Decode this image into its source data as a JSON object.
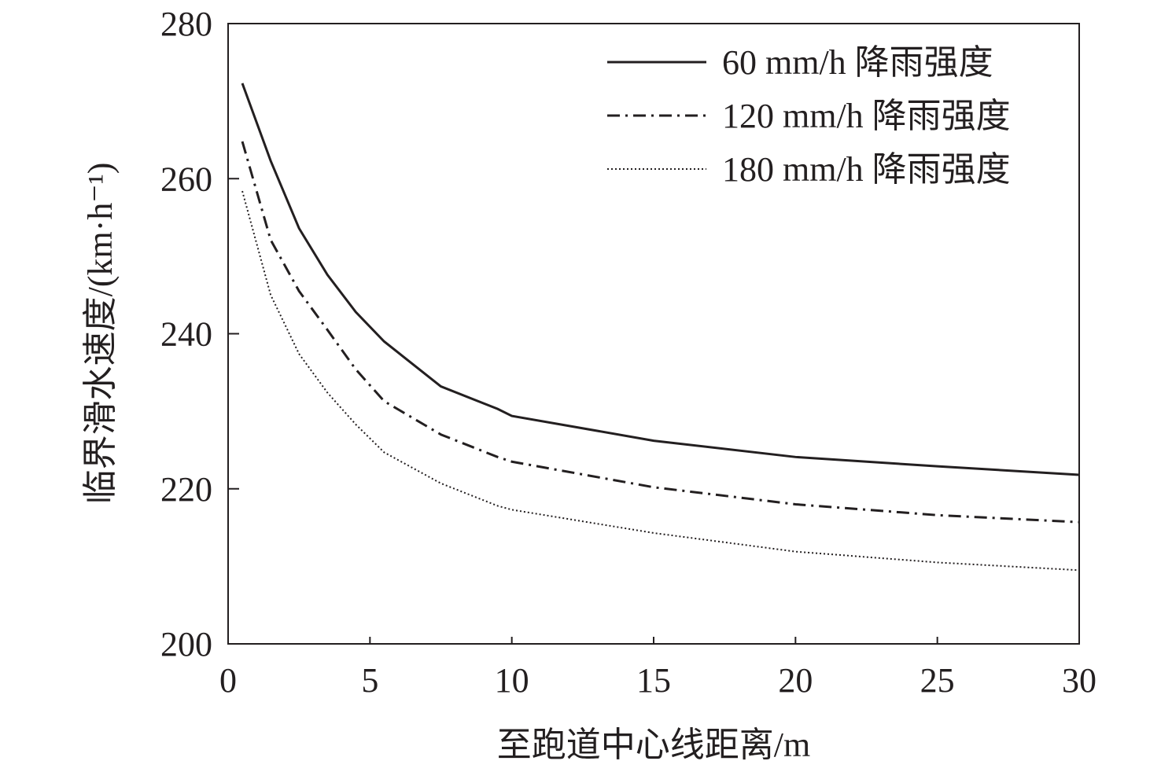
{
  "chart_data": {
    "type": "line",
    "title": "",
    "xlabel": "至跑道中心线距离/m",
    "ylabel": "临界滑水速度/(km·h⁻¹)",
    "xlim": [
      0,
      30
    ],
    "ylim": [
      200,
      280
    ],
    "xticks": [
      0,
      5,
      10,
      15,
      20,
      25,
      30
    ],
    "yticks": [
      200,
      220,
      240,
      260,
      280
    ],
    "xtick_labels": [
      "0",
      "5",
      "10",
      "15",
      "20",
      "25",
      "30"
    ],
    "ytick_labels": [
      "200",
      "220",
      "240",
      "260",
      "280"
    ],
    "grid": false,
    "legend_position": "top-right",
    "x": [
      0.5,
      1.5,
      2.5,
      3.5,
      4.5,
      5.5,
      7.5,
      9.5,
      10,
      15,
      20,
      25,
      30
    ],
    "series": [
      {
        "name": "60 mm/h 降雨强度",
        "style": "solid",
        "values": [
          272.3,
          262.3,
          253.6,
          247.6,
          242.8,
          239.0,
          233.2,
          230.3,
          229.4,
          226.2,
          224.1,
          222.9,
          221.8
        ]
      },
      {
        "name": "120 mm/h 降雨强度",
        "style": "dashdot",
        "values": [
          264.8,
          252.1,
          245.5,
          240.5,
          235.4,
          231.3,
          227.0,
          224.1,
          223.5,
          220.2,
          218.0,
          216.6,
          215.7
        ]
      },
      {
        "name": "180 mm/h 降雨强度",
        "style": "dotted",
        "values": [
          258.4,
          245.0,
          237.4,
          232.4,
          228.3,
          224.7,
          220.7,
          217.8,
          217.3,
          214.3,
          211.9,
          210.5,
          209.5
        ]
      }
    ]
  }
}
